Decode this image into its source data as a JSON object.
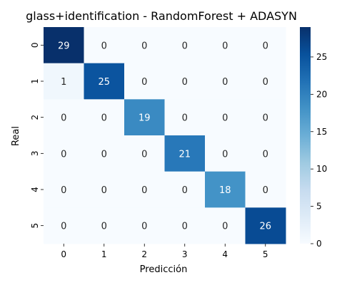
{
  "chart_data": {
    "type": "heatmap",
    "title": "glass+identification - RandomForest + ADASYN",
    "xlabel": "Predicción",
    "ylabel": "Real",
    "x_categories": [
      "0",
      "1",
      "2",
      "3",
      "4",
      "5"
    ],
    "y_categories": [
      "0",
      "1",
      "2",
      "3",
      "4",
      "5"
    ],
    "values": [
      [
        29,
        0,
        0,
        0,
        0,
        0
      ],
      [
        1,
        25,
        0,
        0,
        0,
        0
      ],
      [
        0,
        0,
        19,
        0,
        0,
        0
      ],
      [
        0,
        0,
        0,
        21,
        0,
        0
      ],
      [
        0,
        0,
        0,
        0,
        18,
        0
      ],
      [
        0,
        0,
        0,
        0,
        0,
        26
      ]
    ],
    "colorbar": {
      "range": [
        0,
        29
      ],
      "ticks": [
        "0",
        "5",
        "10",
        "15",
        "20",
        "25"
      ],
      "colormap": "Blues",
      "color_low": "#f7fbff",
      "color_high": "#08306b"
    },
    "annotations": true,
    "grid": false,
    "legend": "colorbar-right"
  }
}
